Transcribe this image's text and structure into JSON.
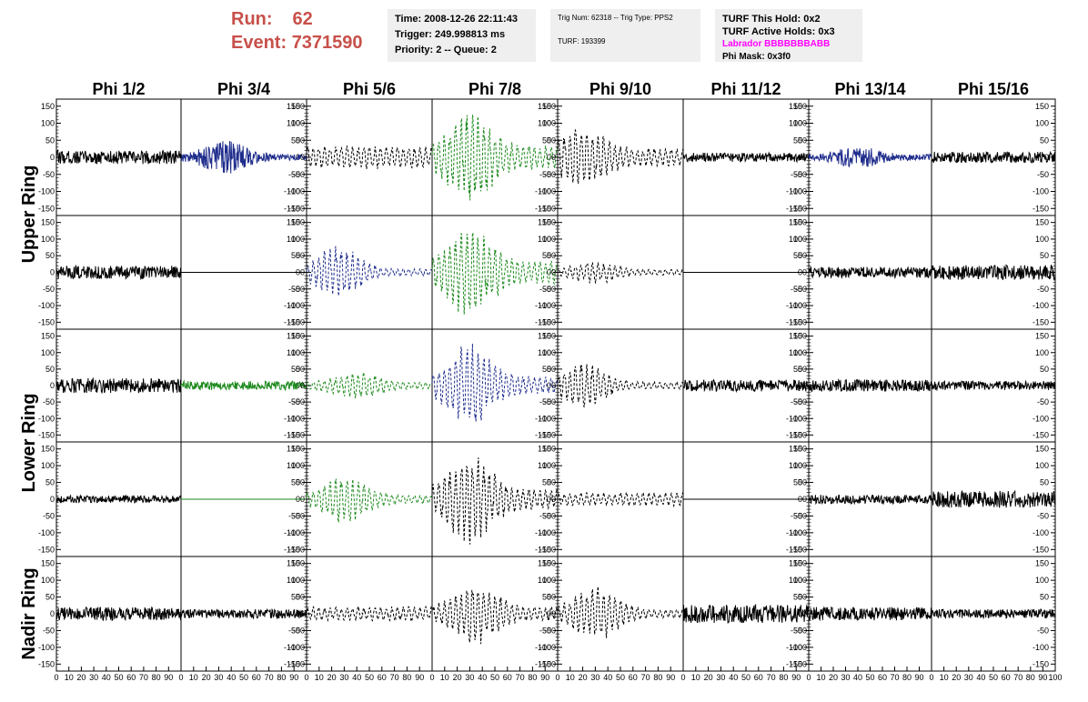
{
  "header": {
    "run_label": "Run:",
    "run_value": "62",
    "event_label": "Event:",
    "event_value": "7371590"
  },
  "info_time": {
    "time": "Time: 2008-12-26 22:11:43",
    "trigger": "Trigger: 249.998813 ms",
    "priority": "Priority: 2 -- Queue: 2"
  },
  "info_trig": {
    "trig": "Trig Num: 62318 -- Trig Type: PPS2",
    "turf": "TURF: 193399"
  },
  "info_turf": {
    "this_hold": "TURF This Hold: 0x2",
    "active_holds": "TURF Active Holds: 0x3",
    "labrador": "Labrador BBBBBBBABB",
    "phi_mask": "Phi Mask: 0x3f0"
  },
  "colors": {
    "black": "#000000",
    "blue": "#1f2d8c",
    "green": "#1e8a1e",
    "header_red": "#c8504a",
    "magenta": "#ff00ff",
    "box_bg": "#efefef"
  },
  "chart_data": {
    "type": "line",
    "columns": [
      "Phi 1/2",
      "Phi 3/4",
      "Phi 5/6",
      "Phi 7/8",
      "Phi 9/10",
      "Phi 11/12",
      "Phi 13/14",
      "Phi 15/16"
    ],
    "ring_labels": [
      "Upper Ring",
      "Lower Ring",
      "Nadir Ring"
    ],
    "ylim": [
      -160,
      160
    ],
    "xlim": [
      0,
      100
    ],
    "y_ticks": [
      -150,
      -100,
      -50,
      0,
      50,
      100,
      150
    ],
    "x_ticks": [
      0,
      10,
      20,
      30,
      40,
      50,
      60,
      70,
      80,
      90,
      100
    ],
    "panels": [
      [
        {
          "color": "black",
          "style": "solid",
          "amp": 22,
          "env": "flat"
        },
        {
          "color": "blue",
          "style": "solid",
          "amp": 22,
          "env": "burst",
          "center": 35,
          "peak": 55
        },
        {
          "color": "black",
          "style": "dashed",
          "amp": 35,
          "env": "flat"
        },
        {
          "color": "green",
          "style": "dashed",
          "amp": 80,
          "env": "burst",
          "center": 30,
          "peak": 140
        },
        {
          "color": "black",
          "style": "dashed",
          "amp": 60,
          "env": "burst",
          "center": 20,
          "peak": 95
        },
        {
          "color": "black",
          "style": "solid",
          "amp": 15,
          "env": "flat"
        },
        {
          "color": "blue",
          "style": "solid",
          "amp": 22,
          "env": "burst",
          "center": 40,
          "peak": 35
        },
        {
          "color": "black",
          "style": "solid",
          "amp": 18,
          "env": "flat"
        }
      ],
      [
        {
          "color": "black",
          "style": "solid",
          "amp": 22,
          "env": "flat"
        },
        {
          "color": "black",
          "style": "flat",
          "amp": 0,
          "env": "flat"
        },
        {
          "color": "blue",
          "style": "dashed",
          "amp": 25,
          "env": "burst",
          "center": 25,
          "peak": 80
        },
        {
          "color": "green",
          "style": "dashed",
          "amp": 80,
          "env": "burst",
          "center": 30,
          "peak": 140
        },
        {
          "color": "black",
          "style": "dashed",
          "amp": 20,
          "env": "burst",
          "center": 30,
          "peak": 35
        },
        {
          "color": "black",
          "style": "flat",
          "amp": 0,
          "env": "flat"
        },
        {
          "color": "black",
          "style": "solid",
          "amp": 18,
          "env": "flat"
        },
        {
          "color": "black",
          "style": "solid",
          "amp": 25,
          "env": "flat"
        }
      ],
      [
        {
          "color": "black",
          "style": "solid",
          "amp": 25,
          "env": "flat"
        },
        {
          "color": "green",
          "style": "solid",
          "amp": 15,
          "env": "flat"
        },
        {
          "color": "green",
          "style": "dashed",
          "amp": 25,
          "env": "burst",
          "center": 40,
          "peak": 45
        },
        {
          "color": "blue",
          "style": "dashed",
          "amp": 60,
          "env": "burst",
          "center": 30,
          "peak": 130
        },
        {
          "color": "black",
          "style": "dashed",
          "amp": 25,
          "env": "burst",
          "center": 20,
          "peak": 75
        },
        {
          "color": "black",
          "style": "solid",
          "amp": 20,
          "env": "flat"
        },
        {
          "color": "black",
          "style": "solid",
          "amp": 20,
          "env": "flat"
        },
        {
          "color": "black",
          "style": "solid",
          "amp": 15,
          "env": "flat"
        }
      ],
      [
        {
          "color": "black",
          "style": "solid",
          "amp": 12,
          "env": "flat"
        },
        {
          "color": "green",
          "style": "flat",
          "amp": 0,
          "env": "flat"
        },
        {
          "color": "green",
          "style": "dashed",
          "amp": 30,
          "env": "burst",
          "center": 30,
          "peak": 75
        },
        {
          "color": "black",
          "style": "dashed",
          "amp": 70,
          "env": "burst",
          "center": 30,
          "peak": 140
        },
        {
          "color": "black",
          "style": "dashed",
          "amp": 20,
          "env": "flat"
        },
        {
          "color": "black",
          "style": "flat",
          "amp": 0,
          "env": "flat"
        },
        {
          "color": "black",
          "style": "solid",
          "amp": 15,
          "env": "flat"
        },
        {
          "color": "black",
          "style": "solid",
          "amp": 28,
          "env": "flat"
        }
      ],
      [
        {
          "color": "black",
          "style": "solid",
          "amp": 22,
          "env": "flat"
        },
        {
          "color": "black",
          "style": "solid",
          "amp": 15,
          "env": "flat"
        },
        {
          "color": "black",
          "style": "dashed",
          "amp": 22,
          "env": "flat"
        },
        {
          "color": "black",
          "style": "dashed",
          "amp": 50,
          "env": "burst",
          "center": 35,
          "peak": 95
        },
        {
          "color": "black",
          "style": "dashed",
          "amp": 30,
          "env": "burst",
          "center": 30,
          "peak": 85
        },
        {
          "color": "black",
          "style": "solid",
          "amp": 30,
          "env": "flat"
        },
        {
          "color": "black",
          "style": "solid",
          "amp": 22,
          "env": "flat"
        },
        {
          "color": "black",
          "style": "solid",
          "amp": 15,
          "env": "flat"
        }
      ]
    ]
  }
}
